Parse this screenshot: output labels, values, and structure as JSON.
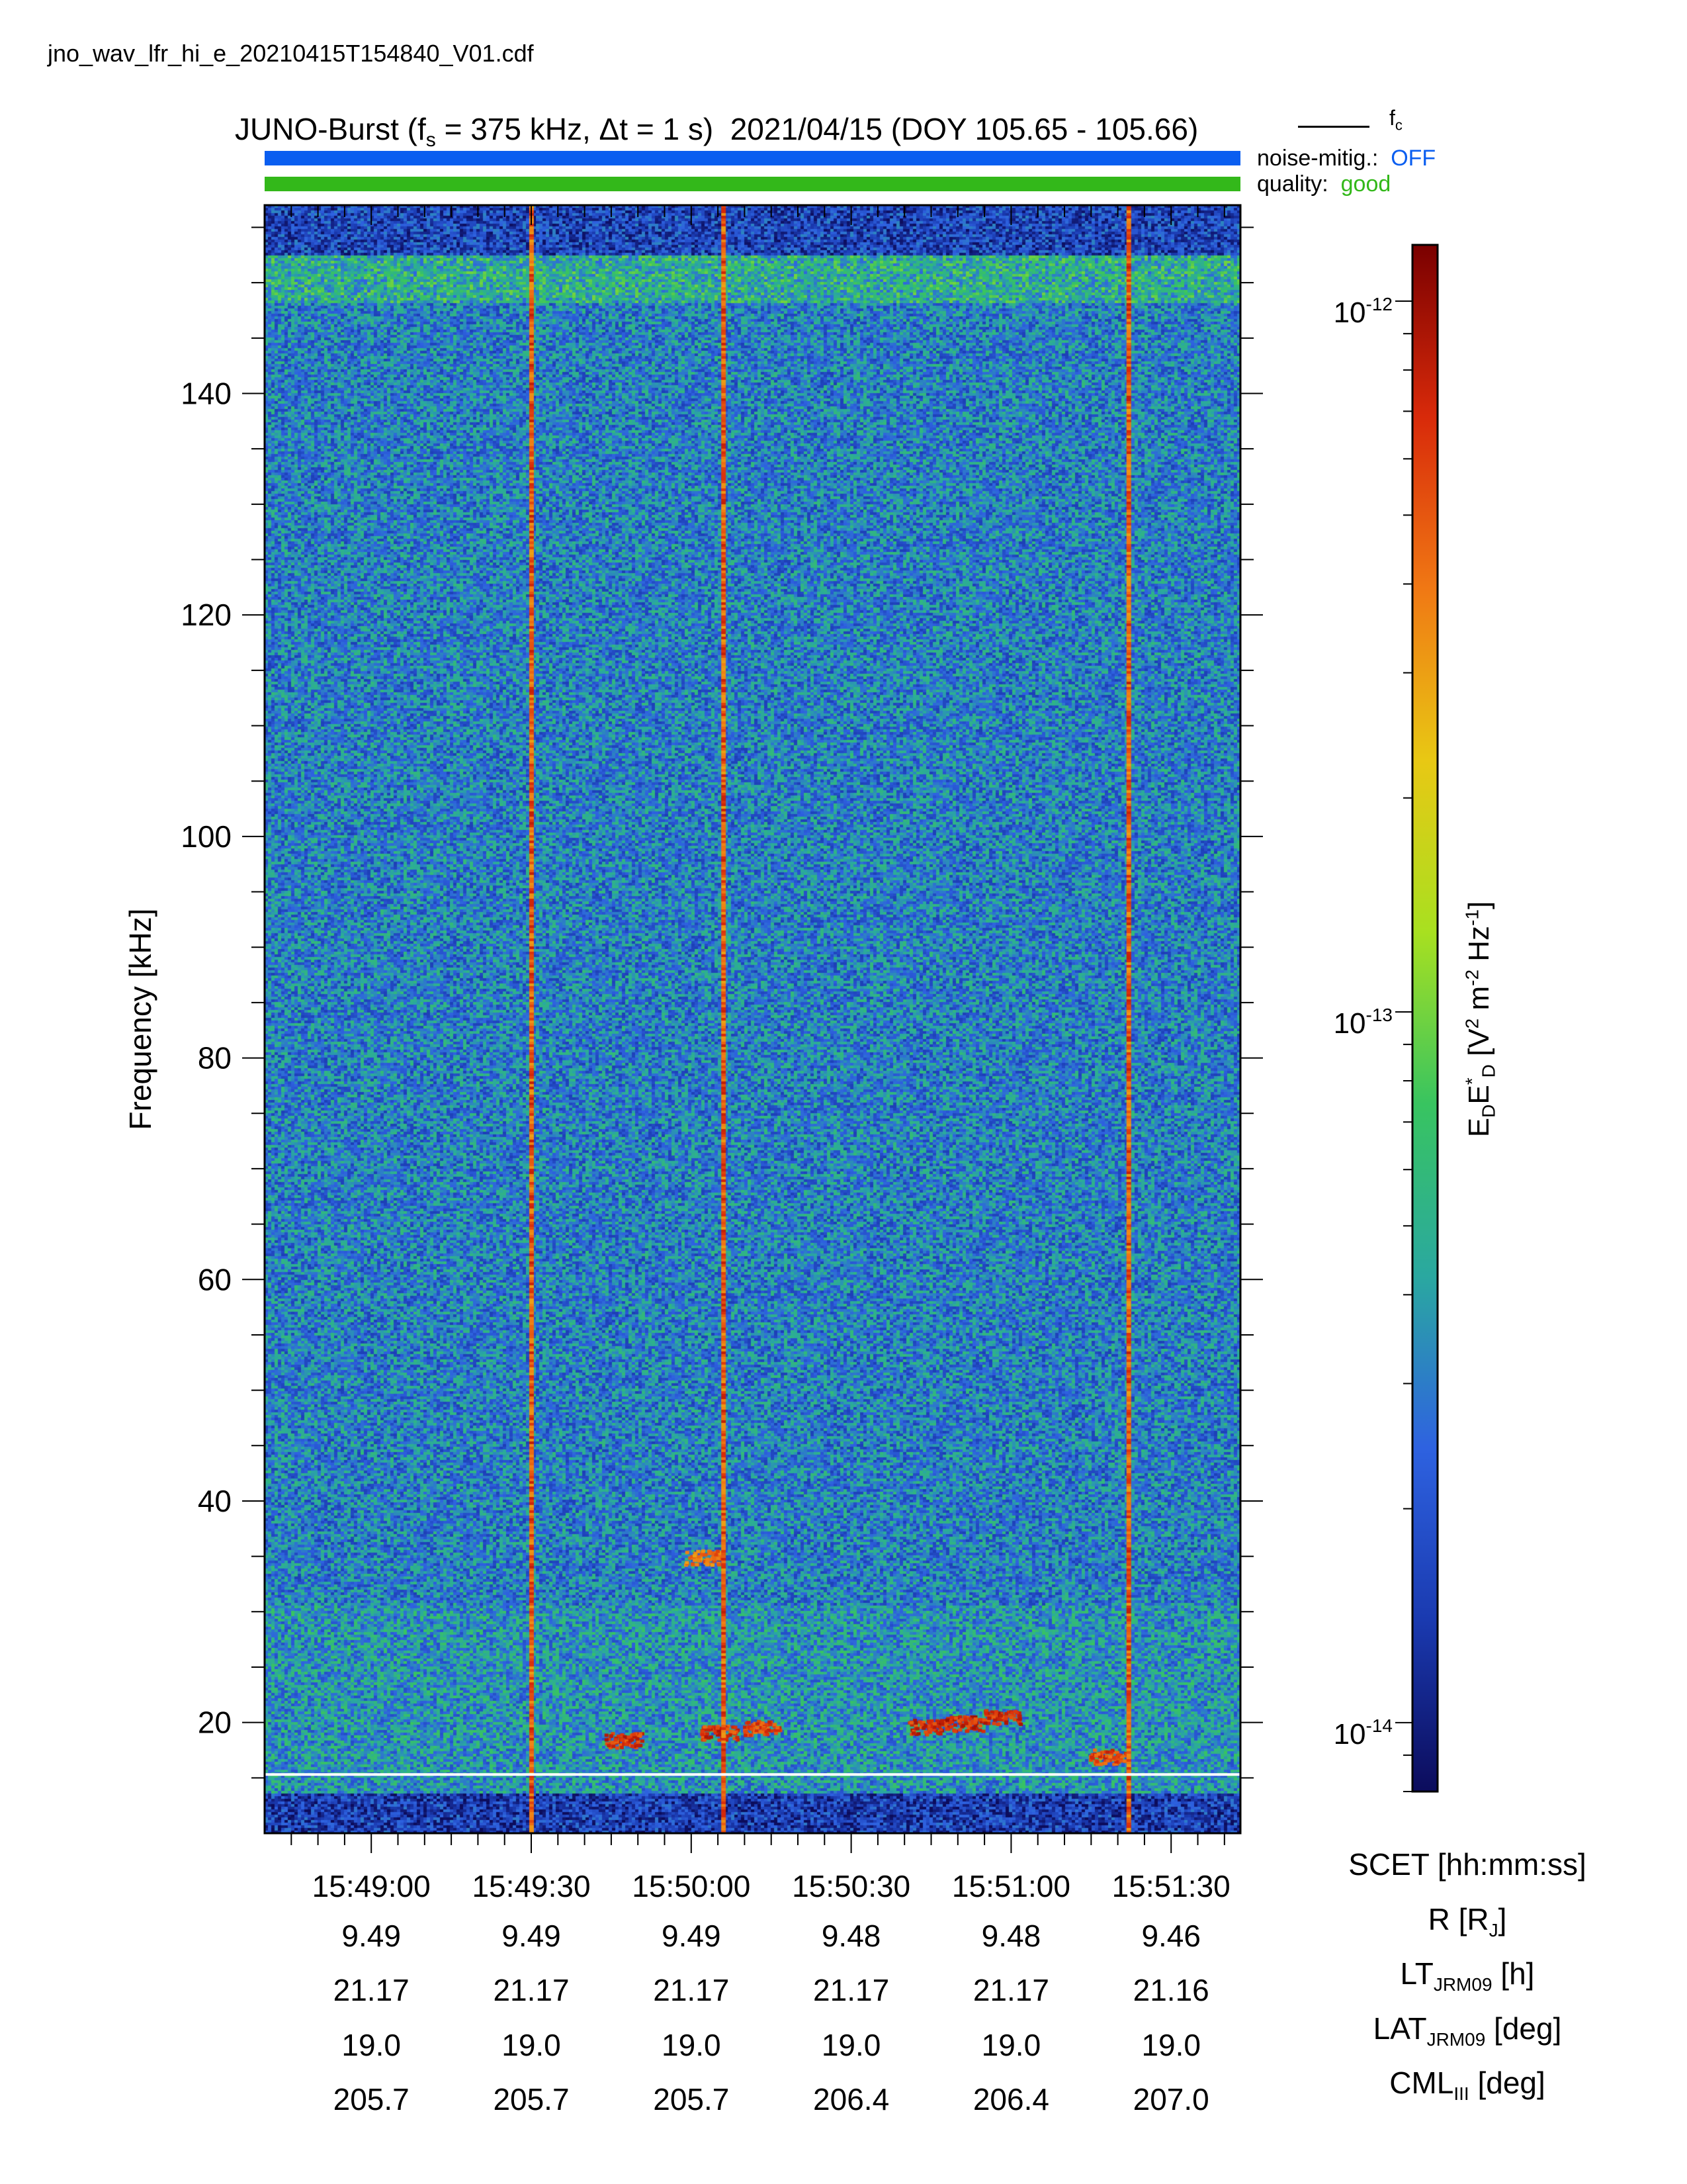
{
  "filename": "jno_wav_lfr_hi_e_20210415T154840_V01.cdf",
  "title": {
    "instrument": "JUNO-Burst",
    "fs_label": "f",
    "fs_sub": "s",
    "fs_value": " = 375 kHz, Δt = 1 s)",
    "date_doy": "2021/04/15 (DOY 105.65 - 105.66)"
  },
  "legend": {
    "fc_label": "f",
    "fc_sub": "c",
    "fc_color": "#ffffff"
  },
  "status": {
    "noise_label": "noise-mitig.:",
    "noise_value": "OFF",
    "noise_color": "#0a5ef0",
    "quality_label": "quality:",
    "quality_value": "good",
    "quality_color": "#33b81a"
  },
  "colorbar": {
    "ticks": [
      {
        "mant": "10",
        "exp": "-12",
        "value": 1e-12
      },
      {
        "mant": "10",
        "exp": "-13",
        "value": 1e-13
      },
      {
        "mant": "10",
        "exp": "-14",
        "value": 1e-14
      }
    ],
    "label_parts": [
      "E",
      "D",
      "E",
      "*",
      "D",
      " [V",
      "2",
      " m",
      "-2",
      " Hz",
      "-1",
      "]"
    ],
    "range": [
      8e-15,
      1.2e-12
    ],
    "scale": "log",
    "colormap": [
      "#0c0c5c",
      "#1a3ab0",
      "#2e62e0",
      "#2aa8a0",
      "#38c460",
      "#a8e020",
      "#e8c814",
      "#f07814",
      "#d82a0a",
      "#7a0000"
    ]
  },
  "ephemeris": {
    "scet_label": "SCET [hh:mm:ss]",
    "r_label": "R [R",
    "r_sub": "J",
    "r_end": "]",
    "lt_label": "LT",
    "lt_sub": "JRM09",
    "lt_end": " [h]",
    "lat_label": "LAT",
    "lat_sub": "JRM09",
    "lat_end": " [deg]",
    "cml_label": "CML",
    "cml_sub": "III",
    "cml_end": " [deg]"
  },
  "chart_data": {
    "type": "heatmap",
    "title": "JUNO-Burst (fs = 375 kHz, Δt = 1 s)  2021/04/15 (DOY 105.65 - 105.66)",
    "ylabel": "Frequency [kHz]",
    "ylim": [
      10,
      157
    ],
    "y_ticks": [
      20,
      40,
      60,
      80,
      100,
      120,
      140
    ],
    "x_range": [
      "15:48:40",
      "15:51:43"
    ],
    "x_ticks": [
      "15:49:00",
      "15:49:30",
      "15:50:00",
      "15:50:30",
      "15:51:00",
      "15:51:30"
    ],
    "x_tick_seconds": [
      20,
      50,
      80,
      110,
      140,
      170
    ],
    "x_total_seconds": 183,
    "z_label": "EDED* [V2 m-2 Hz-1]",
    "z_scale": "log",
    "z_range": [
      8e-15,
      1.2e-12
    ],
    "background_level": 3e-14,
    "fc_line_khz": 15.3,
    "vertical_interference_lines_seconds": [
      50,
      86,
      162
    ],
    "intense_patches": [
      {
        "t_center_s": 67,
        "f_center_khz": 18.5,
        "level": 9e-13
      },
      {
        "t_center_s": 85,
        "f_center_khz": 19.2,
        "level": 9e-13
      },
      {
        "t_center_s": 93,
        "f_center_khz": 19.6,
        "level": 8e-13
      },
      {
        "t_center_s": 82,
        "f_center_khz": 35,
        "level": 6e-13
      },
      {
        "t_center_s": 124,
        "f_center_khz": 19.7,
        "level": 1e-12
      },
      {
        "t_center_s": 131,
        "f_center_khz": 20.0,
        "level": 1e-12
      },
      {
        "t_center_s": 138,
        "f_center_khz": 20.6,
        "level": 1e-12
      },
      {
        "t_center_s": 158,
        "f_center_khz": 17,
        "level": 8e-13
      }
    ],
    "ephemeris_rows": {
      "R": [
        "9.49",
        "9.49",
        "9.49",
        "9.48",
        "9.48",
        "9.46"
      ],
      "LT": [
        "21.17",
        "21.17",
        "21.17",
        "21.17",
        "21.17",
        "21.16"
      ],
      "LAT": [
        "19.0",
        "19.0",
        "19.0",
        "19.0",
        "19.0",
        "19.0"
      ],
      "CML": [
        "205.7",
        "205.7",
        "205.7",
        "206.4",
        "206.4",
        "207.0"
      ]
    }
  }
}
